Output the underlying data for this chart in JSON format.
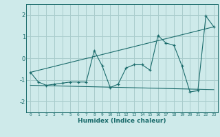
{
  "title": "",
  "xlabel": "Humidex (Indice chaleur)",
  "xlim": [
    -0.5,
    23.5
  ],
  "ylim": [
    -2.5,
    2.5
  ],
  "xticks": [
    0,
    1,
    2,
    3,
    4,
    5,
    6,
    7,
    8,
    9,
    10,
    11,
    12,
    13,
    14,
    15,
    16,
    17,
    18,
    19,
    20,
    21,
    22,
    23
  ],
  "yticks": [
    -2,
    -1,
    0,
    1,
    2
  ],
  "bg_color": "#ceeaea",
  "grid_color": "#a8cccc",
  "line_color": "#1a6b6b",
  "series1_x": [
    0,
    1,
    2,
    3,
    4,
    5,
    6,
    7,
    8,
    9,
    10,
    11,
    12,
    13,
    14,
    15,
    16,
    17,
    18,
    19,
    20,
    21,
    22,
    23
  ],
  "series1_y": [
    -0.65,
    -1.1,
    -1.25,
    -1.2,
    -1.15,
    -1.1,
    -1.1,
    -1.1,
    0.35,
    -0.35,
    -1.35,
    -1.2,
    -0.45,
    -0.3,
    -0.3,
    -0.55,
    1.05,
    0.7,
    0.6,
    -0.35,
    -1.55,
    -1.5,
    1.95,
    1.45
  ],
  "series2_x": [
    0,
    23
  ],
  "series2_y": [
    -0.65,
    1.45
  ],
  "series3_x": [
    0,
    23
  ],
  "series3_y": [
    -1.25,
    -1.45
  ]
}
